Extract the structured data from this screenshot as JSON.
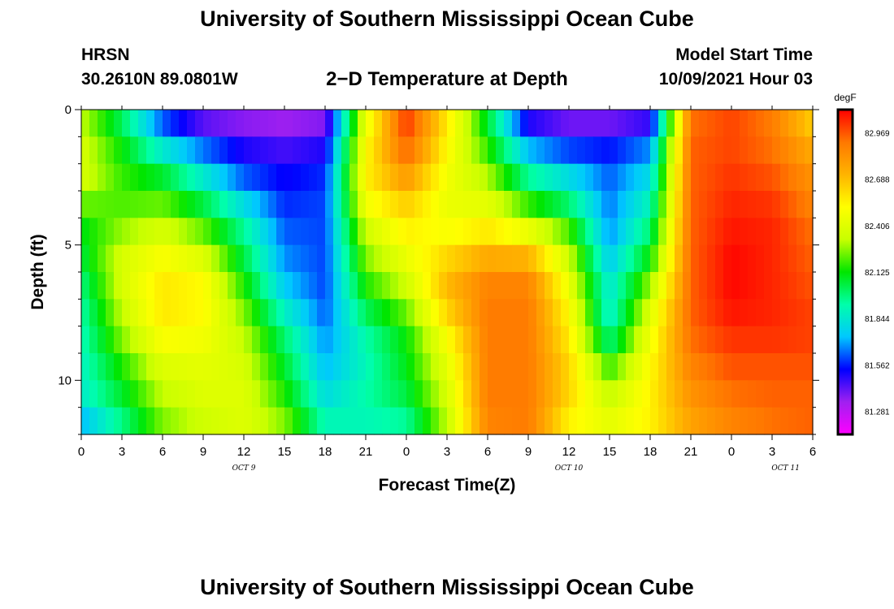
{
  "header": {
    "title": "University of Southern Mississippi Ocean Cube",
    "station": "HRSN",
    "coords": "30.2610N  89.0801W",
    "subtitle": "2−D Temperature at Depth",
    "start_label": "Model Start Time",
    "start_value": "10/09/2021 Hour 03"
  },
  "footer": {
    "title": "University of Southern Mississippi Ocean Cube"
  },
  "chart_data": {
    "type": "heatmap",
    "xlabel": "Forecast Time(Z)",
    "ylabel": "Depth (ft)",
    "x_range_hours": [
      0,
      54
    ],
    "y_range": [
      0,
      12
    ],
    "y_inverted": true,
    "x_tick_labels": [
      "0",
      "3",
      "6",
      "9",
      "12",
      "15",
      "18",
      "21",
      "0",
      "3",
      "6",
      "9",
      "12",
      "15",
      "18",
      "21",
      "0",
      "3",
      "6"
    ],
    "y_tick_labels": [
      "0",
      "5",
      "10"
    ],
    "y_tick_values": [
      0,
      5,
      10
    ],
    "date_labels": [
      {
        "text": "OCT 9",
        "hour": 12
      },
      {
        "text": "OCT 10",
        "hour": 36
      },
      {
        "text": "OCT 11",
        "hour": 52
      }
    ],
    "colorbar": {
      "unit": "degF",
      "tick_labels": [
        "82.969",
        "82.688",
        "82.406",
        "82.125",
        "81.844",
        "81.562",
        "81.281"
      ],
      "min": 81.14,
      "max": 83.11,
      "colors": [
        "#ff00ff",
        "#a020f0",
        "#0000ff",
        "#00c8ff",
        "#00ffaa",
        "#00e600",
        "#c8ff00",
        "#ffff00",
        "#ffb400",
        "#ff7800",
        "#ff0000"
      ]
    },
    "depths_ft": [
      0,
      1,
      2,
      3,
      4,
      5,
      6,
      7,
      8,
      9,
      10,
      11,
      12
    ],
    "time_hours": [
      0,
      3,
      6,
      9,
      12,
      15,
      18,
      21,
      24,
      27,
      30,
      33,
      36,
      39,
      42,
      45,
      48,
      51,
      54
    ],
    "values": [
      [
        82.3,
        81.95,
        81.55,
        81.3,
        81.28,
        81.28,
        81.3,
        82.4,
        83.05,
        82.6,
        82.05,
        81.4,
        81.3,
        81.3,
        81.35,
        82.9,
        83.0,
        82.9,
        82.6
      ],
      [
        82.35,
        82.1,
        81.7,
        81.55,
        81.45,
        81.4,
        81.45,
        82.5,
        83.0,
        82.55,
        82.1,
        81.6,
        81.5,
        81.5,
        81.6,
        82.95,
        83.0,
        82.9,
        82.7
      ],
      [
        82.4,
        82.15,
        82.0,
        81.75,
        81.55,
        81.5,
        81.55,
        82.55,
        82.9,
        82.5,
        82.25,
        81.85,
        81.7,
        81.6,
        81.75,
        82.95,
        83.0,
        82.95,
        82.8
      ],
      [
        82.35,
        82.2,
        82.15,
        81.95,
        81.7,
        81.55,
        81.6,
        82.55,
        82.7,
        82.45,
        82.35,
        82.05,
        81.9,
        81.65,
        81.85,
        82.95,
        83.05,
        83.0,
        82.85
      ],
      [
        82.1,
        82.2,
        82.3,
        82.15,
        81.9,
        81.6,
        81.6,
        82.4,
        82.6,
        82.45,
        82.5,
        82.3,
        82.1,
        81.65,
        81.95,
        82.95,
        83.05,
        83.05,
        82.9
      ],
      [
        82.1,
        82.35,
        82.45,
        82.3,
        82.0,
        81.65,
        81.6,
        82.3,
        82.5,
        82.55,
        82.65,
        82.6,
        82.3,
        81.7,
        82.05,
        82.95,
        83.1,
        83.05,
        82.95
      ],
      [
        82.0,
        82.4,
        82.55,
        82.5,
        82.1,
        81.7,
        81.6,
        82.2,
        82.4,
        82.7,
        82.85,
        82.85,
        82.4,
        81.8,
        82.2,
        82.95,
        83.1,
        83.05,
        82.95
      ],
      [
        81.95,
        82.35,
        82.6,
        82.55,
        82.2,
        81.8,
        81.6,
        82.1,
        82.3,
        82.7,
        82.9,
        82.9,
        82.5,
        81.85,
        82.35,
        82.95,
        83.1,
        83.05,
        83.0
      ],
      [
        81.9,
        82.3,
        82.55,
        82.5,
        82.3,
        81.95,
        81.65,
        81.95,
        82.15,
        82.55,
        82.9,
        82.9,
        82.55,
        81.85,
        82.45,
        82.95,
        83.05,
        83.05,
        83.0
      ],
      [
        81.9,
        82.2,
        82.45,
        82.45,
        82.35,
        82.05,
        81.7,
        81.9,
        82.1,
        82.45,
        82.9,
        82.9,
        82.6,
        82.1,
        82.5,
        82.9,
        83.0,
        83.0,
        83.0
      ],
      [
        81.85,
        82.1,
        82.35,
        82.4,
        82.4,
        82.1,
        81.75,
        81.9,
        82.1,
        82.4,
        82.9,
        82.9,
        82.65,
        82.25,
        82.55,
        82.85,
        82.95,
        82.95,
        82.95
      ],
      [
        81.85,
        82.05,
        82.3,
        82.4,
        82.4,
        82.2,
        81.85,
        81.95,
        82.0,
        82.35,
        82.9,
        82.9,
        82.6,
        82.4,
        82.55,
        82.8,
        82.9,
        82.95,
        82.95
      ],
      [
        81.6,
        81.9,
        82.2,
        82.3,
        82.4,
        82.3,
        81.95,
        81.85,
        81.9,
        82.3,
        82.85,
        82.9,
        82.5,
        82.45,
        82.55,
        82.75,
        82.85,
        82.9,
        82.95
      ]
    ]
  }
}
